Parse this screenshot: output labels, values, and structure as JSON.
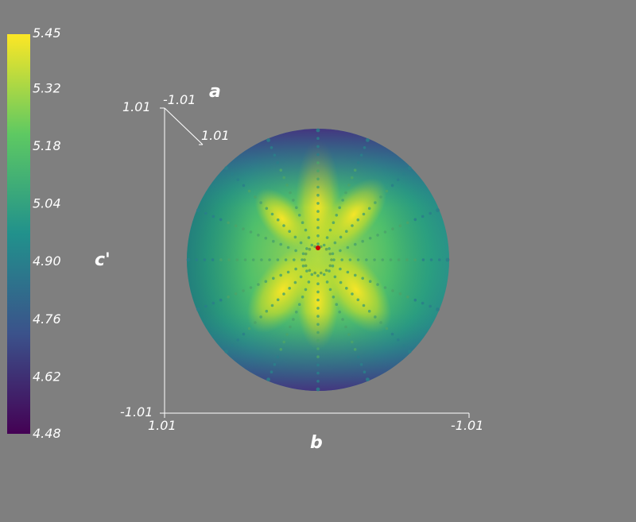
{
  "chart_data": {
    "type": "heatmap",
    "title": "",
    "description_kind": "3D surface plot on a sphere with colorbar",
    "colormap": "viridis",
    "colorbar": {
      "min": 4.48,
      "max": 5.45,
      "tick_labels": [
        "5.45",
        "5.32",
        "5.18",
        "5.04",
        "4.90",
        "4.76",
        "4.62",
        "4.48"
      ],
      "placement": "left"
    },
    "axes": {
      "a": {
        "label": "a",
        "range": [
          -1.01,
          1.01
        ],
        "tick_labels": [
          "-1.01",
          "1.01"
        ]
      },
      "b": {
        "label": "b",
        "range": [
          1.01,
          -1.01
        ],
        "tick_labels": [
          "1.01",
          "-1.01"
        ]
      },
      "c": {
        "label": "c'",
        "range": [
          -1.01,
          1.01
        ],
        "tick_labels": [
          "1.01",
          "-1.01"
        ]
      }
    },
    "surface_value_extremes": {
      "max_region": "center star lobes",
      "max_value": 5.45,
      "min_region": "top and bottom rim",
      "min_value": 4.48
    },
    "grid": false
  },
  "colors": {
    "background": "#7f7f7f",
    "text": "#ffffff",
    "marker": "#cc0000",
    "viridis": [
      "#440154",
      "#3b528b",
      "#21918c",
      "#5ec962",
      "#fde725"
    ]
  }
}
